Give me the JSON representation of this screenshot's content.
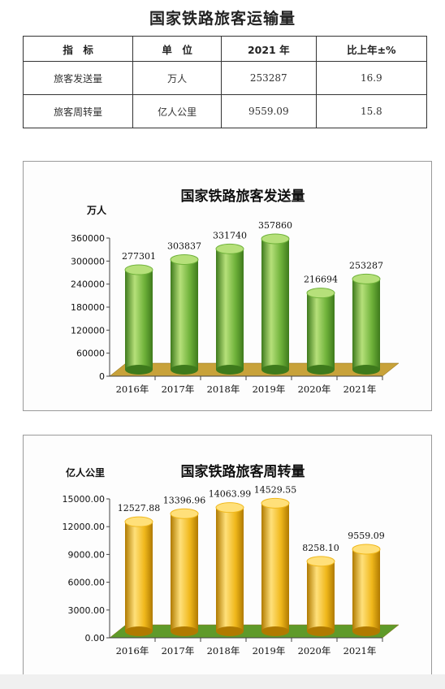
{
  "page": {
    "title": "国家铁路旅客运输量"
  },
  "table": {
    "headers": [
      "指　标",
      "单　位",
      "2021 年",
      "比上年±%"
    ],
    "rows": [
      [
        "旅客发送量",
        "万人",
        "253287",
        "16.9"
      ],
      [
        "旅客周转量",
        "亿人公里",
        "9559.09",
        "15.8"
      ]
    ]
  },
  "chart_data": [
    {
      "type": "bar",
      "title": "国家铁路旅客发送量",
      "ylabel": "万人",
      "categories": [
        "2016年",
        "2017年",
        "2018年",
        "2019年",
        "2020年",
        "2021年"
      ],
      "values": [
        277301,
        303837,
        331740,
        357860,
        216694,
        253287
      ],
      "value_labels": [
        "277301",
        "303837",
        "331740",
        "357860",
        "216694",
        "253287"
      ],
      "ylim": [
        0,
        360000
      ],
      "yticks": [
        0,
        60000,
        120000,
        180000,
        240000,
        300000,
        360000
      ],
      "ytick_labels": [
        "0",
        "60000",
        "120000",
        "180000",
        "240000",
        "300000",
        "360000"
      ],
      "colors": {
        "bar": "#6fb23a",
        "bar_light": "#b6e07a",
        "bar_dark": "#3e7a1c",
        "floor": "#c8a23a"
      }
    },
    {
      "type": "bar",
      "title": "国家铁路旅客周转量",
      "ylabel": "亿人公里",
      "categories": [
        "2016年",
        "2017年",
        "2018年",
        "2019年",
        "2020年",
        "2021年"
      ],
      "values": [
        12527.88,
        13396.96,
        14063.99,
        14529.55,
        8258.1,
        9559.09
      ],
      "value_labels": [
        "12527.88",
        "13396.96",
        "14063.99",
        "14529.55",
        "8258.10",
        "9559.09"
      ],
      "ylim": [
        0,
        15000
      ],
      "yticks": [
        0,
        3000,
        6000,
        9000,
        12000,
        15000
      ],
      "ytick_labels": [
        "0.00",
        "3000.00",
        "6000.00",
        "9000.00",
        "12000.00",
        "15000.00"
      ],
      "colors": {
        "bar": "#f0b81c",
        "bar_light": "#ffe07a",
        "bar_dark": "#b07a00",
        "floor": "#5f9a2a"
      }
    }
  ]
}
